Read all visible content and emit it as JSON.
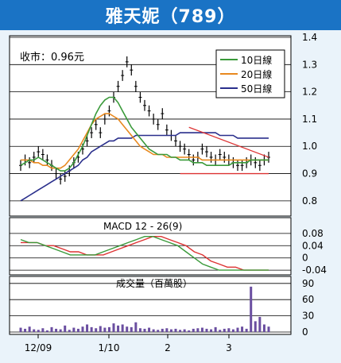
{
  "title": "雅天妮（789）",
  "close_label": "收市：0.96元",
  "price_axis": {
    "ylim": [
      0.75,
      1.4
    ],
    "ticks": [
      "1.4",
      "1.3",
      "1.2",
      "1.1",
      "1.0",
      "0.9",
      "0.8"
    ]
  },
  "macd_axis": {
    "label": "MACD 12 - 26(9)",
    "ticks": [
      "0.08",
      "0.04",
      "0",
      "-0.04"
    ]
  },
  "vol_axis": {
    "label": "成交量（百萬股）",
    "ticks": [
      "90",
      "60",
      "30",
      "0"
    ]
  },
  "x_ticks": [
    "12/09",
    "1/10",
    "2",
    "3"
  ],
  "legend": [
    {
      "label": "10日線",
      "color": "#3a9a3a"
    },
    {
      "label": "20日線",
      "color": "#e8891f"
    },
    {
      "label": "50日線",
      "color": "#2a2f8c"
    }
  ],
  "chart_data": {
    "type": "line",
    "title": "雅天妮（789）",
    "close_price": 0.96,
    "price": {
      "close": [
        0.93,
        0.95,
        0.94,
        0.96,
        0.98,
        0.97,
        0.95,
        0.93,
        0.9,
        0.88,
        0.89,
        0.91,
        0.94,
        0.96,
        0.99,
        1.02,
        1.05,
        1.08,
        1.05,
        1.1,
        1.13,
        1.18,
        1.22,
        1.26,
        1.31,
        1.28,
        1.22,
        1.18,
        1.15,
        1.13,
        1.1,
        1.08,
        1.12,
        1.06,
        1.04,
        1.02,
        1.0,
        0.99,
        0.97,
        0.95,
        0.96,
        0.99,
        0.98,
        0.96,
        0.95,
        0.97,
        0.96,
        0.95,
        0.94,
        0.93,
        0.93,
        0.94,
        0.95,
        0.94,
        0.93,
        0.95,
        0.96
      ],
      "ma10": [
        0.93,
        0.94,
        0.95,
        0.95,
        0.96,
        0.95,
        0.94,
        0.93,
        0.92,
        0.91,
        0.91,
        0.92,
        0.94,
        0.97,
        1.0,
        1.04,
        1.08,
        1.12,
        1.15,
        1.17,
        1.18,
        1.18,
        1.16,
        1.13,
        1.1,
        1.07,
        1.05,
        1.03,
        1.01,
        0.99,
        0.98,
        0.97,
        0.97,
        0.97,
        0.96,
        0.96,
        0.95,
        0.95,
        0.95,
        0.94,
        0.94,
        0.94,
        0.93,
        0.93,
        0.93,
        0.93,
        0.93,
        0.93,
        0.94,
        0.94,
        0.94,
        0.94,
        0.95,
        0.95,
        0.95,
        0.95,
        0.95
      ],
      "ma20": [
        0.95,
        0.95,
        0.95,
        0.94,
        0.94,
        0.93,
        0.93,
        0.92,
        0.92,
        0.92,
        0.93,
        0.95,
        0.97,
        0.99,
        1.02,
        1.05,
        1.08,
        1.1,
        1.11,
        1.12,
        1.12,
        1.11,
        1.1,
        1.08,
        1.06,
        1.04,
        1.02,
        1.0,
        0.99,
        0.98,
        0.97,
        0.97,
        0.97,
        0.96,
        0.96,
        0.96,
        0.96,
        0.96,
        0.96,
        0.96,
        0.96,
        0.95,
        0.95,
        0.95,
        0.95,
        0.95,
        0.95,
        0.95,
        0.95,
        0.95,
        0.95,
        0.95,
        0.95,
        0.95,
        0.95,
        0.95,
        0.95
      ],
      "ma50": [
        0.8,
        0.81,
        0.82,
        0.83,
        0.84,
        0.85,
        0.86,
        0.87,
        0.88,
        0.89,
        0.9,
        0.91,
        0.92,
        0.93,
        0.95,
        0.96,
        0.98,
        0.99,
        1.0,
        1.01,
        1.02,
        1.02,
        1.03,
        1.03,
        1.03,
        1.03,
        1.04,
        1.04,
        1.04,
        1.04,
        1.04,
        1.04,
        1.04,
        1.04,
        1.04,
        1.04,
        1.05,
        1.05,
        1.05,
        1.05,
        1.05,
        1.05,
        1.05,
        1.05,
        1.05,
        1.04,
        1.04,
        1.04,
        1.04,
        1.03,
        1.03,
        1.03,
        1.03,
        1.03,
        1.03,
        1.03,
        1.03
      ]
    },
    "macd": {
      "macd": [
        0.06,
        0.05,
        0.05,
        0.04,
        0.03,
        0.02,
        0.01,
        0.01,
        0.01,
        0.01,
        0.02,
        0.03,
        0.04,
        0.05,
        0.06,
        0.07,
        0.07,
        0.06,
        0.05,
        0.04,
        0.02,
        0.0,
        -0.02,
        -0.03,
        -0.04,
        -0.04,
        -0.04,
        -0.04,
        -0.04,
        -0.04,
        -0.04
      ],
      "signal": [
        0.05,
        0.05,
        0.05,
        0.04,
        0.04,
        0.03,
        0.02,
        0.02,
        0.01,
        0.01,
        0.01,
        0.02,
        0.03,
        0.04,
        0.05,
        0.06,
        0.07,
        0.07,
        0.06,
        0.05,
        0.04,
        0.02,
        0.01,
        -0.01,
        -0.02,
        -0.03,
        -0.03,
        -0.04,
        -0.04,
        -0.04,
        -0.04
      ]
    },
    "volume": [
      8,
      6,
      10,
      5,
      4,
      7,
      3,
      9,
      6,
      5,
      12,
      4,
      8,
      6,
      10,
      14,
      9,
      7,
      11,
      8,
      9,
      16,
      12,
      14,
      10,
      9,
      18,
      7,
      6,
      8,
      5,
      4,
      6,
      7,
      5,
      6,
      4,
      5,
      3,
      6,
      7,
      8,
      6,
      5,
      9,
      4,
      6,
      7,
      5,
      8,
      10,
      6,
      84,
      20,
      28,
      14,
      10
    ]
  }
}
